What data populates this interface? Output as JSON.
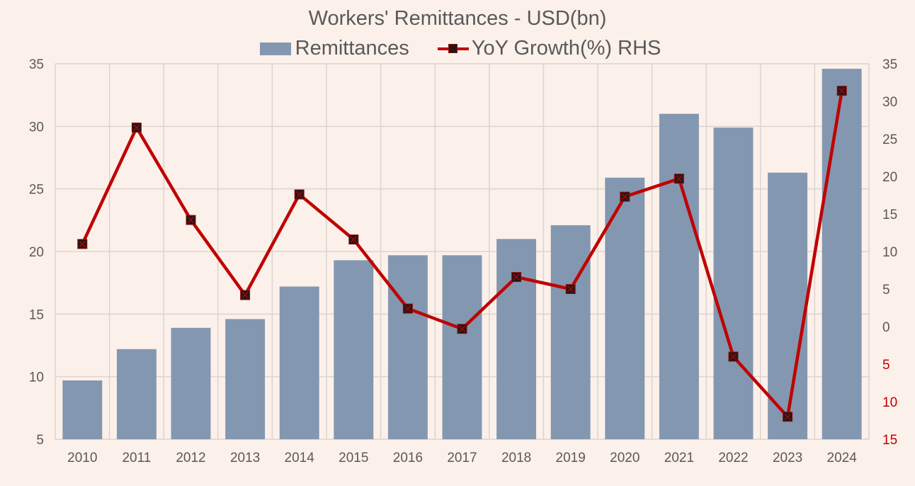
{
  "chart_data": {
    "type": "bar",
    "title": "Workers' Remittances - USD(bn)",
    "categories": [
      "2010",
      "2011",
      "2012",
      "2013",
      "2014",
      "2015",
      "2016",
      "2017",
      "2018",
      "2019",
      "2020",
      "2021",
      "2022",
      "2023",
      "2024"
    ],
    "series": [
      {
        "name": "Remittances",
        "type": "bar",
        "axis": "left",
        "color": "#8397b0",
        "values": [
          9.7,
          12.2,
          13.9,
          14.6,
          17.2,
          19.3,
          19.7,
          19.7,
          21.0,
          22.1,
          25.9,
          31.0,
          29.9,
          26.3,
          34.6
        ]
      },
      {
        "name": "YoY Growth(%) RHS",
        "type": "line",
        "axis": "right",
        "color": "#c00000",
        "marker": "square",
        "values": [
          11.0,
          26.5,
          14.2,
          4.2,
          17.6,
          11.6,
          2.4,
          -0.3,
          6.6,
          5.0,
          17.3,
          19.7,
          -4.0,
          -12.0,
          31.4
        ]
      }
    ],
    "xlabel": "",
    "ylabel": "",
    "ylim": [
      5,
      35
    ],
    "y_ticks": [
      5,
      10,
      15,
      20,
      25,
      30,
      35
    ],
    "y2lim": [
      -15,
      35
    ],
    "y2_ticks": [
      35,
      30,
      25,
      20,
      15,
      10,
      5,
      0,
      -5,
      -10,
      -15
    ],
    "y2_tick_labels": [
      "35",
      "30",
      "25",
      "20",
      "15",
      "10",
      "5",
      "0",
      "5",
      "10",
      "15"
    ],
    "y2_negative_color": "#c00000",
    "grid": true,
    "legend_position": "top"
  },
  "legend": {
    "bar_label": "Remittances",
    "line_label": "YoY Growth(%) RHS"
  },
  "colors": {
    "background": "#fcf0ea",
    "bar": "#8397b0",
    "line": "#c00000",
    "marker": "#2a1414",
    "grid": "#dcd4d0",
    "text": "#595959"
  }
}
